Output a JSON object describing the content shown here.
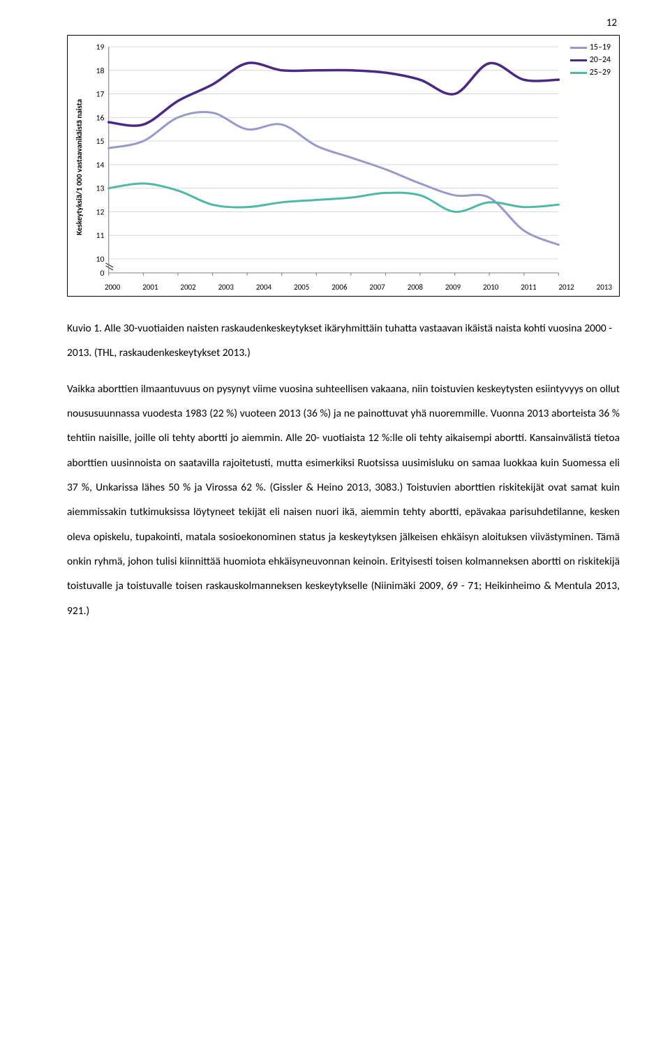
{
  "page_number": "12",
  "chart": {
    "type": "line",
    "y_axis_label": "Keskeytyksiä/1 000 vastaavanikäistä naista",
    "y_ticks": [
      "19",
      "18",
      "17",
      "16",
      "15",
      "14",
      "13",
      "12",
      "11",
      "10",
      "0"
    ],
    "y_min": 9,
    "y_max": 19,
    "x_ticks": [
      "2000",
      "2001",
      "2002",
      "2003",
      "2004",
      "2005",
      "2006",
      "2007",
      "2008",
      "2009",
      "2010",
      "2011",
      "2012",
      "2013"
    ],
    "grid_color": "#d9d9d9",
    "background_color": "#ffffff",
    "axis_color": "#808080",
    "tick_fontsize": 11,
    "series": [
      {
        "label": "15–19",
        "color": "#9999cc",
        "stroke_width": 3,
        "values": [
          14.7,
          15.0,
          16.0,
          16.2,
          15.5,
          15.7,
          14.8,
          14.3,
          13.8,
          13.2,
          12.7,
          12.6,
          11.2,
          10.6
        ]
      },
      {
        "label": "20–24",
        "color": "#4b2884",
        "stroke_width": 3.5,
        "values": [
          15.8,
          15.7,
          16.7,
          17.4,
          18.3,
          18.0,
          18.0,
          18.0,
          17.9,
          17.6,
          17.0,
          18.3,
          17.6,
          17.6
        ]
      },
      {
        "label": "25–29",
        "color": "#4fb8a8",
        "stroke_width": 3,
        "values": [
          13.0,
          13.2,
          12.9,
          12.3,
          12.2,
          12.4,
          12.5,
          12.6,
          12.8,
          12.7,
          12.0,
          12.4,
          12.2,
          12.3
        ]
      }
    ],
    "legend": [
      {
        "label": "15–19",
        "color": "#9999cc"
      },
      {
        "label": "20–24",
        "color": "#4b2884"
      },
      {
        "label": "25–29",
        "color": "#4fb8a8"
      }
    ]
  },
  "caption": "Kuvio 1. Alle 30-vuotiaiden naisten raskaudenkeskeytykset ikäryhmittäin tuhatta vastaavan ikäistä naista kohti vuosina 2000 - 2013. (THL, raskaudenkeskeytykset 2013.)",
  "body_text": "Vaikka aborttien ilmaantuvuus on pysynyt viime vuosina suhteellisen vakaana, niin toistuvien keskeytysten esiintyvyys on ollut noususuunnassa vuodesta 1983 (22 %) vuoteen 2013 (36 %) ja ne painottuvat yhä nuoremmille. Vuonna 2013 aborteista 36 % tehtiin naisille, joille oli tehty abortti jo aiemmin. Alle 20- vuotiaista 12 %:lle oli tehty aikaisempi abortti. Kansainvälistä tietoa aborttien uusinnoista on saatavilla rajoitetusti, mutta esimerkiksi Ruotsissa uusimisluku on samaa luokkaa kuin Suomessa eli 37 %, Unkarissa lähes 50 % ja Virossa 62 %. (Gissler & Heino 2013, 3083.) Toistuvien aborttien riskitekijät ovat samat kuin aiemmissakin tutkimuksissa löytyneet tekijät eli naisen nuori ikä, aiemmin tehty abortti, epävakaa parisuhdetilanne, kesken oleva opiskelu, tupakointi, matala sosioekonominen status ja keskeytyksen jälkeisen ehkäisyn aloituksen viivästyminen. Tämä onkin ryhmä, johon tulisi kiinnittää huomiota ehkäisyneuvonnan keinoin. Erityisesti toisen kolmanneksen abortti on riskitekijä toistuvalle ja toistuvalle toisen raskauskolmanneksen keskeytykselle (Niinimäki 2009, 69 - 71; Heikinheimo & Mentula 2013, 921.)"
}
